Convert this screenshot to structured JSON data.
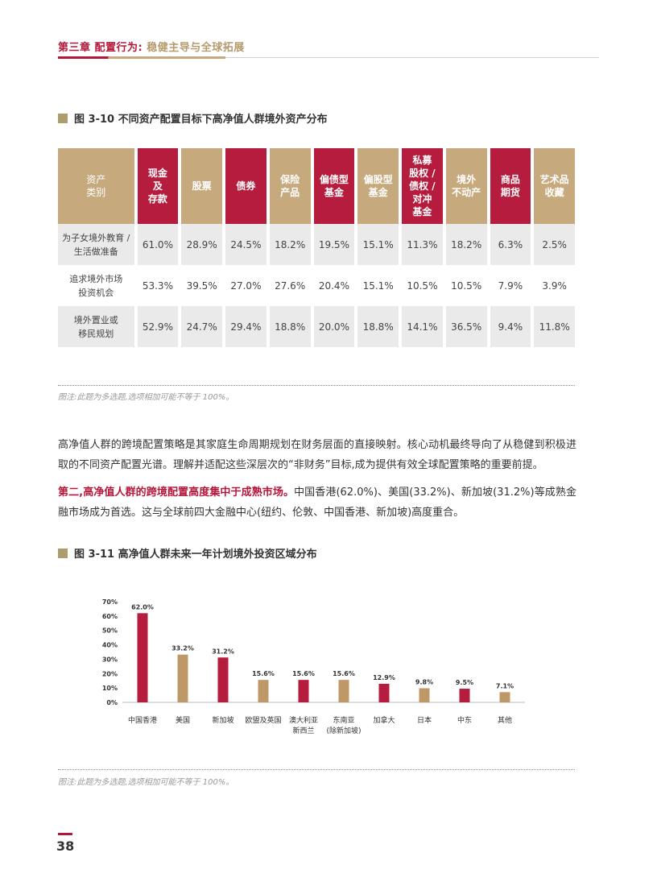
{
  "header": {
    "chapter_label": "第三章  配置行为:",
    "chapter_sub": " 稳健主导与全球拓展"
  },
  "figure1": {
    "title": "图 3-10  不同资产配置目标下高净值人群境外资产分布",
    "corner": [
      "资产",
      "类别"
    ],
    "columns": [
      {
        "lines": [
          "现金",
          "及",
          "存款"
        ],
        "color": "red"
      },
      {
        "lines": [
          "股票"
        ],
        "color": "tan"
      },
      {
        "lines": [
          "债券"
        ],
        "color": "red"
      },
      {
        "lines": [
          "保险",
          "产品"
        ],
        "color": "tan"
      },
      {
        "lines": [
          "偏债型",
          "基金"
        ],
        "color": "red"
      },
      {
        "lines": [
          "偏股型",
          "基金"
        ],
        "color": "tan"
      },
      {
        "lines": [
          "私募",
          "股权 /",
          "债权 /",
          "对冲",
          "基金"
        ],
        "color": "red"
      },
      {
        "lines": [
          "境外",
          "不动产"
        ],
        "color": "tan"
      },
      {
        "lines": [
          "商品",
          "期货"
        ],
        "color": "red"
      },
      {
        "lines": [
          "艺术品",
          "收藏"
        ],
        "color": "tan"
      }
    ],
    "rows": [
      {
        "label": [
          "为子女境外教育 /",
          "生活做准备"
        ],
        "values": [
          "61.0%",
          "28.9%",
          "24.5%",
          "18.2%",
          "19.5%",
          "15.1%",
          "11.3%",
          "18.2%",
          "6.3%",
          "2.5%"
        ]
      },
      {
        "label": [
          "追求境外市场",
          "投资机会"
        ],
        "values": [
          "53.3%",
          "39.5%",
          "27.0%",
          "27.6%",
          "20.4%",
          "15.1%",
          "10.5%",
          "10.5%",
          "7.9%",
          "3.9%"
        ]
      },
      {
        "label": [
          "境外置业或",
          "移民规划"
        ],
        "values": [
          "52.9%",
          "24.7%",
          "29.4%",
          "18.8%",
          "20.0%",
          "18.8%",
          "14.1%",
          "36.5%",
          "9.4%",
          "11.8%"
        ]
      }
    ],
    "note": "图注:此题为多选题,选项相加可能不等于 100%。"
  },
  "paragraph1": "高净值人群的跨境配置策略是其家庭生命周期规划在财务层面的直接映射。核心动机最终导向了从稳健到积极进取的不同资产配置光谱。理解并适配这些深层次的“非财务”目标,成为提供有效全球配置策略的重要前提。",
  "paragraph2": {
    "highlight": "第二,高净值人群的跨境配置高度集中于成熟市场。",
    "rest": "中国香港(62.0%)、美国(33.2%)、新加坡(31.2%)等成熟金融市场成为首选。这与全球前四大金融中心(纽约、伦敦、中国香港、新加坡)高度重合。"
  },
  "figure2": {
    "title": "图 3-11  高净值人群未来一年计划境外投资区域分布",
    "note": "图注:此题为多选题,选项相加可能不等于 100%。"
  },
  "chart_data": {
    "type": "bar",
    "categories": [
      [
        "中国香港"
      ],
      [
        "美国"
      ],
      [
        "新加坡"
      ],
      [
        "欧盟及英国"
      ],
      [
        "澳大利亚",
        "新西兰"
      ],
      [
        "东南亚",
        "(除新加坡)"
      ],
      [
        "加拿大"
      ],
      [
        "日本"
      ],
      [
        "中东"
      ],
      [
        "其他"
      ]
    ],
    "values": [
      62.0,
      33.2,
      31.2,
      15.6,
      15.6,
      15.6,
      12.9,
      9.8,
      9.5,
      7.1
    ],
    "value_labels": [
      "62.0%",
      "33.2%",
      "31.2%",
      "15.6%",
      "15.6%",
      "15.6%",
      "12.9%",
      "9.8%",
      "9.5%",
      "7.1%"
    ],
    "bar_colors": [
      "#b51c3d",
      "#bf9868",
      "#b51c3d",
      "#bf9868",
      "#b51c3d",
      "#bf9868",
      "#b51c3d",
      "#bf9868",
      "#b51c3d",
      "#bf9868"
    ],
    "yticks": [
      "0%",
      "10%",
      "20%",
      "30%",
      "40%",
      "50%",
      "60%",
      "70%"
    ],
    "ylim": [
      0,
      70
    ],
    "grid": false,
    "legend": "none"
  },
  "page_number": "38",
  "colors": {
    "accent_red": "#b5173a",
    "accent_tan": "#c6aa7d"
  }
}
